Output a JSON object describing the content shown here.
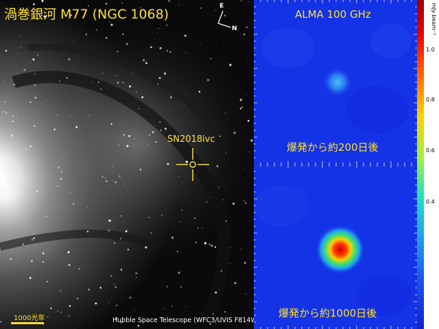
{
  "hubble": {
    "title": "渦巻銀河 M77 (NGC 1068)",
    "sn_label": "SN2018ivc",
    "credit": "Hubble Space Telescope (WFC3/UVIS F814W)",
    "scale_label": "1000光年",
    "compass": {
      "east": "E",
      "north": "N"
    }
  },
  "alma": {
    "title": "ALMA 100 GHz",
    "top_caption": "爆発から約200日後",
    "bottom_caption": "爆発から約1000日後"
  },
  "colorbar": {
    "unit": "mJy beam⁻¹",
    "ticks": [
      "1.0",
      "0.8",
      "0.6",
      "0.4"
    ]
  }
}
